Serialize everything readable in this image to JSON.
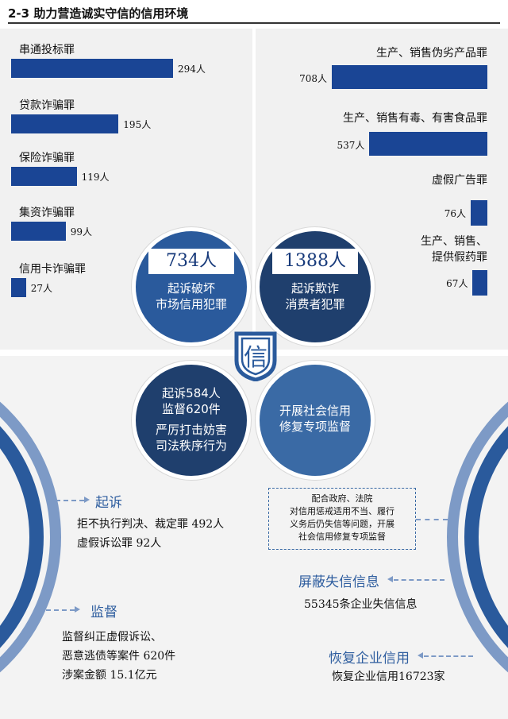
{
  "header": {
    "title": "2-3  助力营造诚实守信的信用环境"
  },
  "colors": {
    "bar": "#1a4595",
    "circle_dark": "#16397a",
    "circle_mid": "#2a5a9c",
    "circle_light": "#3a6aa5",
    "accent_text": "#2f5e9f"
  },
  "chart_data": [
    {
      "type": "bar",
      "orientation": "horizontal",
      "categories": [
        "串通投标罪",
        "贷款诈骗罪",
        "保险诈骗罪",
        "集资诈骗罪",
        "信用卡诈骗罪"
      ],
      "values": [
        294,
        195,
        119,
        99,
        27
      ],
      "value_labels": [
        "294人",
        "195人",
        "119人",
        "99人",
        "27人"
      ],
      "xlim": [
        0,
        294
      ]
    },
    {
      "type": "bar",
      "orientation": "horizontal",
      "direction": "right-aligned",
      "categories": [
        "生产、销售伪劣产品罪",
        "生产、销售有毒、有害食品罪",
        "虚假广告罪",
        "生产、销售、提供假药罪"
      ],
      "values": [
        708,
        537,
        76,
        67
      ],
      "value_labels": [
        "708人",
        "537人",
        "76人",
        "67人"
      ],
      "xlim": [
        0,
        708
      ]
    }
  ],
  "circles": {
    "top_left": {
      "number": "734人",
      "line1": "起诉破坏",
      "line2": "市场信用犯罪"
    },
    "top_right": {
      "number": "1388人",
      "line1": "起诉欺诈",
      "line2": "消费者犯罪"
    },
    "bottom_left": {
      "line1": "起诉584人",
      "line2": "监督620件",
      "line3": "严厉打击妨害",
      "line4": "司法秩序行为"
    },
    "bottom_right": {
      "line1": "开展社会信用",
      "line2": "修复专项监督"
    }
  },
  "logo": {
    "glyph": "信"
  },
  "left_section": {
    "prosecute_label": "起诉",
    "prosecute_lines": [
      "拒不执行判决、裁定罪 492人",
      "虚假诉讼罪 92人"
    ],
    "supervise_label": "监督",
    "supervise_lines": [
      "监督纠正虚假诉讼、",
      "恶意逃债等案件 620件",
      "涉案金额 15.1亿元"
    ]
  },
  "right_section": {
    "note_lines": [
      "配合政府、法院",
      "对信用惩戒适用不当、履行",
      "义务后仍失信等问题，开展",
      "社会信用修复专项监督"
    ],
    "shield_label": "屏蔽失信信息",
    "shield_value": "55345条企业失信信息",
    "restore_label": "恢复企业信用",
    "restore_value": "恢复企业信用16723家"
  }
}
